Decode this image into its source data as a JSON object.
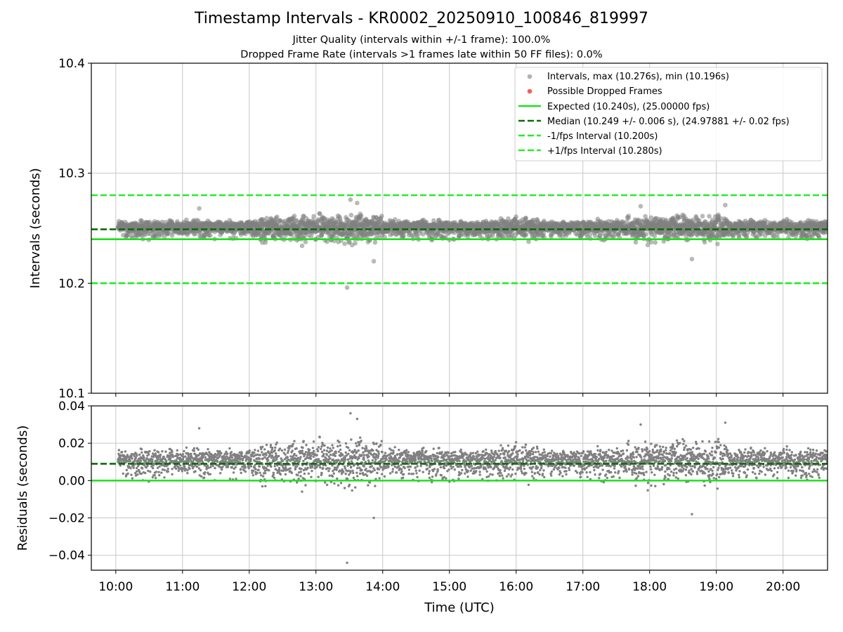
{
  "figure": {
    "title": "Timestamp Intervals - KR0002_20250910_100846_819997",
    "subtitle_lines": [
      "Jitter Quality (intervals within +/-1 frame): 100.0%",
      "Dropped Frame Rate (intervals >1 frames late within 50 FF files): 0.0%"
    ]
  },
  "colors": {
    "points": "#808080",
    "dropped": "#f06060",
    "expected": "#1de01d",
    "median": "#0b6b0b",
    "bounds": "#22ee22",
    "grid": "#c8c8c8"
  },
  "chart_data": [
    {
      "type": "scatter",
      "panel": "intervals",
      "ylabel": "Intervals (seconds)",
      "ylim": [
        10.1,
        10.4
      ],
      "yticks": [
        "10.1",
        "10.2",
        "10.3",
        "10.4"
      ],
      "x_start": "10:02",
      "x_end": "20:40",
      "xlim": [
        "09:38",
        "20:40"
      ],
      "xticks": [
        "10:00",
        "11:00",
        "12:00",
        "13:00",
        "14:00",
        "15:00",
        "16:00",
        "17:00",
        "18:00",
        "19:00",
        "20:00"
      ],
      "grid": true,
      "legend_position": "top-right",
      "series": [
        {
          "name": "Intervals, max (10.276s), min (10.196s)",
          "style": "scatter",
          "count": 3740,
          "center": 10.249,
          "min": 10.196,
          "max": 10.276,
          "outlier_points": [
            {
              "x": "13:28",
              "y": 10.196
            },
            {
              "x": "13:31",
              "y": 10.276
            },
            {
              "x": "13:37",
              "y": 10.273
            },
            {
              "x": "11:15",
              "y": 10.268
            },
            {
              "x": "17:52",
              "y": 10.27
            },
            {
              "x": "19:08",
              "y": 10.271
            },
            {
              "x": "18:38",
              "y": 10.222
            },
            {
              "x": "13:52",
              "y": 10.22
            }
          ]
        },
        {
          "name": "Possible Dropped Frames",
          "style": "scatter",
          "count": 0
        },
        {
          "name": "Expected (10.240s), (25.00000 fps)",
          "style": "hline",
          "y": 10.24
        },
        {
          "name": "Median (10.249 +/- 0.006 s), (24.97881 +/- 0.02 fps)",
          "style": "hline-dashed",
          "y": 10.249
        },
        {
          "name": "-1/fps Interval (10.200s)",
          "style": "hline-dashed",
          "y": 10.2
        },
        {
          "name": "+1/fps Interval (10.280s)",
          "style": "hline-dashed",
          "y": 10.28
        }
      ]
    },
    {
      "type": "scatter",
      "panel": "residuals",
      "xlabel": "Time (UTC)",
      "ylabel": "Residuals (seconds)",
      "ylim": [
        -0.048,
        0.04
      ],
      "yticks": [
        "−0.04",
        "−0.02",
        "0.00",
        "0.02",
        "0.04"
      ],
      "ytick_values": [
        -0.04,
        -0.02,
        0.0,
        0.02,
        0.04
      ],
      "grid": true,
      "series": [
        {
          "style": "scatter",
          "count": 3740,
          "center": 0.009,
          "min": -0.044,
          "max": 0.036
        },
        {
          "style": "hline",
          "y": 0.0
        },
        {
          "style": "hline-dashed",
          "y": 0.009
        }
      ]
    }
  ]
}
